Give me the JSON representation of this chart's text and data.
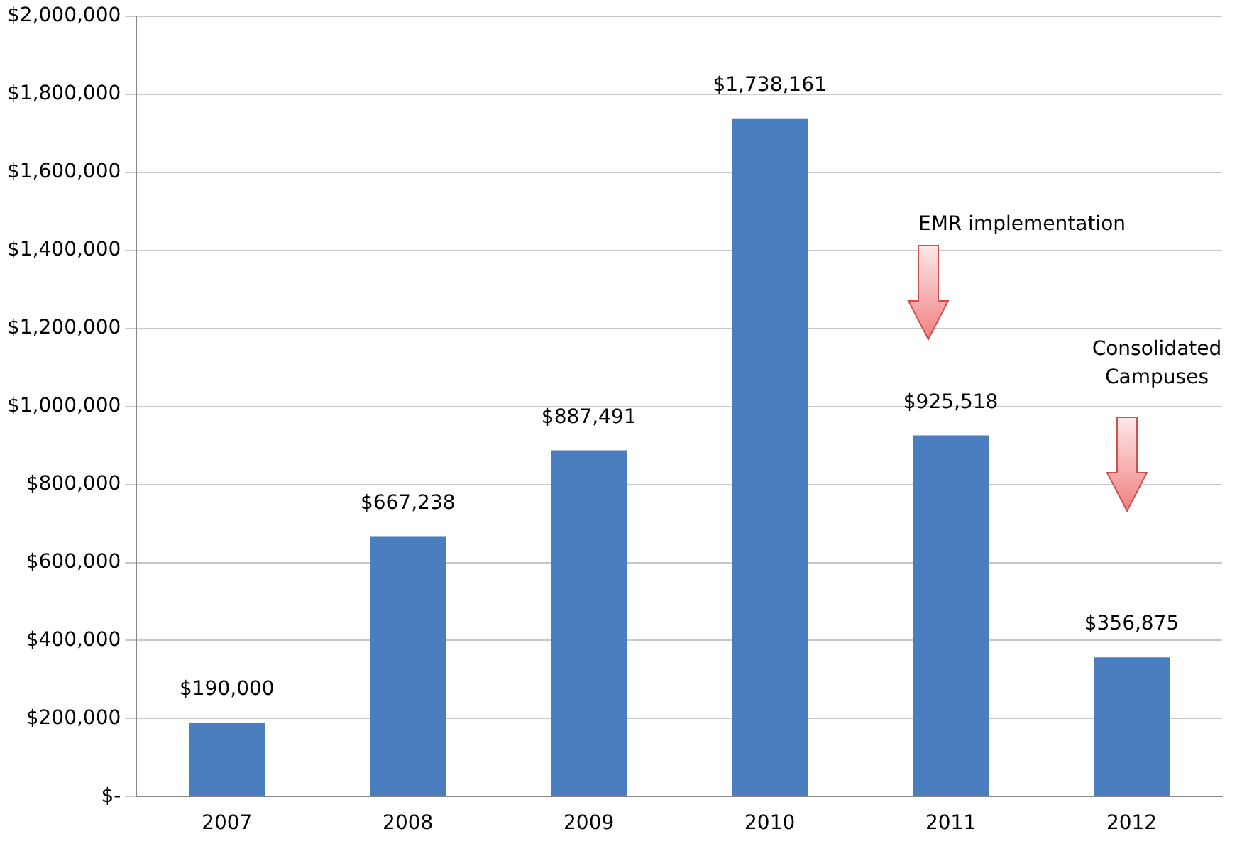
{
  "chart_data": {
    "type": "bar",
    "categories": [
      "2007",
      "2008",
      "2009",
      "2010",
      "2011",
      "2012"
    ],
    "values": [
      190000,
      667238,
      887491,
      1738161,
      925518,
      356875
    ],
    "value_labels": [
      "$190,000",
      "$667,238",
      "$887,491",
      "$1,738,161",
      "$925,518",
      "$356,875"
    ],
    "color": "#4a7ebf",
    "ylim": [
      0,
      2000000
    ],
    "yticks": [
      {
        "value": 0,
        "label": "$-"
      },
      {
        "value": 200000,
        "label": "$200,000"
      },
      {
        "value": 400000,
        "label": "$400,000"
      },
      {
        "value": 600000,
        "label": "$600,000"
      },
      {
        "value": 800000,
        "label": "$800,000"
      },
      {
        "value": 1000000,
        "label": "$1,000,000"
      },
      {
        "value": 1200000,
        "label": "$1,200,000"
      },
      {
        "value": 1400000,
        "label": "$1,400,000"
      },
      {
        "value": 1600000,
        "label": "$1,600,000"
      },
      {
        "value": 1800000,
        "label": "$1,800,000"
      },
      {
        "value": 2000000,
        "label": "$2,000,000"
      }
    ],
    "grid": "y",
    "legend": false,
    "annotations": [
      "EMR implementation",
      "Consolidated Campuses"
    ]
  }
}
